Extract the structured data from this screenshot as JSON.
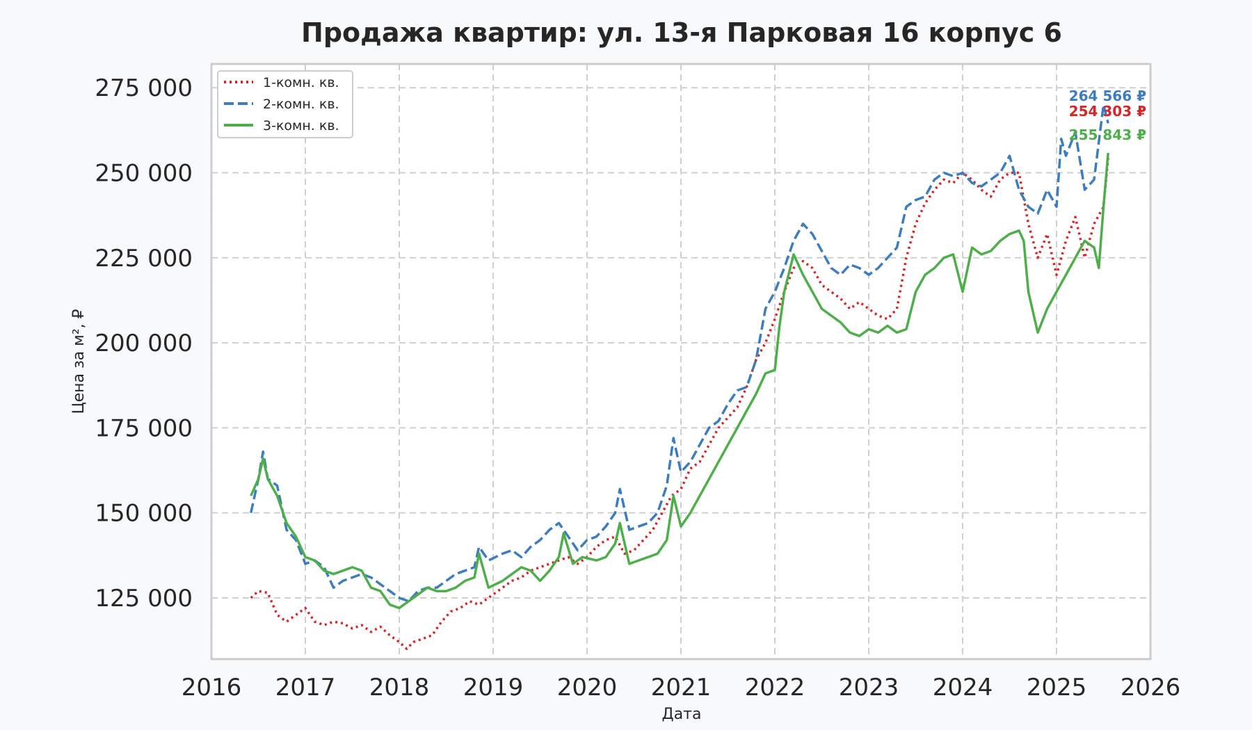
{
  "chart_data": {
    "type": "line",
    "title": "Продажа квартир: ул. 13-я Парковая 16 корпус 6",
    "xlabel": "Дата",
    "ylabel": "Цена за м², ₽",
    "xlim": [
      2016,
      2026
    ],
    "ylim": [
      107000,
      282000
    ],
    "xticks": [
      "2016",
      "2017",
      "2018",
      "2019",
      "2020",
      "2021",
      "2022",
      "2023",
      "2024",
      "2025",
      "2026"
    ],
    "yticks": [
      "125 000",
      "150 000",
      "175 000",
      "200 000",
      "225 000",
      "250 000",
      "275 000"
    ],
    "grid": true,
    "legend_position": "top-left",
    "series": [
      {
        "name": "1-комн. кв.",
        "color": "#d62728",
        "style": "dotted",
        "end_label": "254 303 ₽",
        "x": [
          2016.42,
          2016.5,
          2016.6,
          2016.7,
          2016.8,
          2016.9,
          2017.0,
          2017.1,
          2017.2,
          2017.3,
          2017.4,
          2017.5,
          2017.6,
          2017.7,
          2017.8,
          2017.9,
          2018.0,
          2018.08,
          2018.15,
          2018.25,
          2018.35,
          2018.45,
          2018.55,
          2018.65,
          2018.75,
          2018.85,
          2019.0,
          2019.1,
          2019.2,
          2019.3,
          2019.4,
          2019.5,
          2019.6,
          2019.7,
          2019.8,
          2019.9,
          2020.0,
          2020.1,
          2020.2,
          2020.3,
          2020.4,
          2020.5,
          2020.6,
          2020.7,
          2020.8,
          2020.9,
          2021.0,
          2021.1,
          2021.2,
          2021.3,
          2021.4,
          2021.5,
          2021.6,
          2021.7,
          2021.8,
          2021.9,
          2022.0,
          2022.1,
          2022.2,
          2022.3,
          2022.4,
          2022.5,
          2022.6,
          2022.7,
          2022.8,
          2022.9,
          2023.0,
          2023.1,
          2023.2,
          2023.3,
          2023.4,
          2023.5,
          2023.6,
          2023.7,
          2023.8,
          2023.9,
          2024.0,
          2024.1,
          2024.2,
          2024.3,
          2024.4,
          2024.5,
          2024.6,
          2024.7,
          2024.8,
          2024.9,
          2025.0,
          2025.1,
          2025.2,
          2025.3,
          2025.4,
          2025.5,
          2025.55
        ],
        "y": [
          125000,
          127000,
          126500,
          120000,
          118000,
          120000,
          122000,
          118000,
          117000,
          118000,
          117500,
          116000,
          117000,
          115000,
          116500,
          114000,
          112000,
          110000,
          112000,
          113000,
          114000,
          118000,
          121000,
          122000,
          124000,
          123000,
          126000,
          128000,
          130000,
          131000,
          133000,
          134000,
          135000,
          136000,
          137000,
          135000,
          137000,
          140000,
          142000,
          143000,
          138000,
          139000,
          142000,
          145000,
          150000,
          155000,
          157000,
          163000,
          165000,
          170000,
          175000,
          178000,
          181000,
          187000,
          195000,
          200000,
          207000,
          215000,
          222000,
          224000,
          222000,
          217000,
          215000,
          213000,
          210000,
          212000,
          210000,
          208000,
          207000,
          210000,
          225000,
          235000,
          241000,
          245000,
          248000,
          247000,
          250000,
          248000,
          245000,
          243000,
          248000,
          250000,
          250000,
          235000,
          225000,
          232000,
          220000,
          230000,
          237000,
          225000,
          235000,
          240000,
          254303
        ]
      },
      {
        "name": "2-комн. кв.",
        "color": "#3b7dbf",
        "style": "dashed",
        "end_label": "264 566 ₽",
        "x": [
          2016.42,
          2016.5,
          2016.55,
          2016.6,
          2016.7,
          2016.8,
          2016.9,
          2017.0,
          2017.1,
          2017.2,
          2017.3,
          2017.4,
          2017.5,
          2017.6,
          2017.7,
          2017.8,
          2017.9,
          2018.0,
          2018.1,
          2018.2,
          2018.3,
          2018.4,
          2018.5,
          2018.6,
          2018.7,
          2018.8,
          2018.85,
          2018.95,
          2019.1,
          2019.2,
          2019.3,
          2019.4,
          2019.5,
          2019.6,
          2019.7,
          2019.8,
          2019.9,
          2020.0,
          2020.1,
          2020.2,
          2020.3,
          2020.35,
          2020.45,
          2020.55,
          2020.65,
          2020.75,
          2020.85,
          2020.92,
          2021.0,
          2021.1,
          2021.2,
          2021.3,
          2021.4,
          2021.5,
          2021.6,
          2021.7,
          2021.8,
          2021.9,
          2022.0,
          2022.1,
          2022.2,
          2022.3,
          2022.4,
          2022.5,
          2022.6,
          2022.7,
          2022.8,
          2022.9,
          2023.0,
          2023.1,
          2023.2,
          2023.3,
          2023.4,
          2023.5,
          2023.6,
          2023.7,
          2023.8,
          2023.9,
          2024.0,
          2024.1,
          2024.2,
          2024.3,
          2024.4,
          2024.5,
          2024.6,
          2024.7,
          2024.8,
          2024.9,
          2025.0,
          2025.05,
          2025.1,
          2025.2,
          2025.3,
          2025.4,
          2025.5,
          2025.55
        ],
        "y": [
          150000,
          160000,
          168000,
          160000,
          158000,
          145000,
          142000,
          135000,
          136000,
          134000,
          128000,
          130000,
          131000,
          132000,
          131000,
          129000,
          127000,
          125000,
          124000,
          127000,
          128000,
          128000,
          130000,
          132000,
          133000,
          134000,
          140000,
          136000,
          138000,
          139000,
          137000,
          140000,
          142000,
          145000,
          147000,
          143000,
          139000,
          142000,
          143000,
          146000,
          150000,
          157000,
          145000,
          146000,
          147000,
          150000,
          158000,
          172000,
          162000,
          165000,
          170000,
          175000,
          177000,
          182000,
          186000,
          187000,
          195000,
          210000,
          215000,
          222000,
          230000,
          235000,
          232000,
          227000,
          222000,
          220000,
          223000,
          222000,
          220000,
          222000,
          225000,
          228000,
          240000,
          242000,
          243000,
          248000,
          250000,
          249000,
          250000,
          247000,
          246000,
          248000,
          250000,
          255000,
          245000,
          240000,
          238000,
          245000,
          240000,
          260000,
          255000,
          262000,
          245000,
          248000,
          270000,
          264566
        ]
      },
      {
        "name": "3-комн. кв.",
        "color": "#4daf4a",
        "style": "solid",
        "end_label": "255 843 ₽",
        "x": [
          2016.42,
          2016.5,
          2016.55,
          2016.6,
          2016.7,
          2016.8,
          2016.9,
          2017.0,
          2017.1,
          2017.2,
          2017.3,
          2017.4,
          2017.5,
          2017.6,
          2017.7,
          2017.8,
          2017.9,
          2018.0,
          2018.1,
          2018.2,
          2018.3,
          2018.4,
          2018.5,
          2018.6,
          2018.7,
          2018.8,
          2018.85,
          2018.95,
          2019.1,
          2019.2,
          2019.3,
          2019.4,
          2019.5,
          2019.6,
          2019.7,
          2019.75,
          2019.85,
          2019.95,
          2020.1,
          2020.2,
          2020.3,
          2020.35,
          2020.45,
          2020.55,
          2020.65,
          2020.75,
          2020.85,
          2020.92,
          2021.0,
          2021.1,
          2021.2,
          2021.3,
          2021.4,
          2021.5,
          2021.6,
          2021.7,
          2021.8,
          2021.9,
          2022.0,
          2022.05,
          2022.1,
          2022.2,
          2022.3,
          2022.4,
          2022.5,
          2022.6,
          2022.7,
          2022.8,
          2022.9,
          2023.0,
          2023.1,
          2023.2,
          2023.3,
          2023.4,
          2023.5,
          2023.6,
          2023.7,
          2023.8,
          2023.9,
          2024.0,
          2024.1,
          2024.2,
          2024.3,
          2024.4,
          2024.5,
          2024.6,
          2024.65,
          2024.7,
          2024.8,
          2024.9,
          2025.0,
          2025.1,
          2025.2,
          2025.3,
          2025.4,
          2025.45,
          2025.5,
          2025.55
        ],
        "y": [
          155000,
          160000,
          166000,
          160000,
          155000,
          147000,
          143000,
          137000,
          136000,
          133000,
          132000,
          133000,
          134000,
          133000,
          128000,
          127000,
          123000,
          122000,
          124000,
          126000,
          128000,
          127000,
          127000,
          128000,
          130000,
          131000,
          138000,
          128000,
          130000,
          132000,
          134000,
          133000,
          130000,
          133000,
          137000,
          144000,
          135000,
          137000,
          136000,
          137000,
          141000,
          147000,
          135000,
          136000,
          137000,
          138000,
          142000,
          155000,
          146000,
          150000,
          155000,
          160000,
          165000,
          170000,
          175000,
          180000,
          185000,
          191000,
          192000,
          205000,
          215000,
          226000,
          220000,
          215000,
          210000,
          208000,
          206000,
          203000,
          202000,
          204000,
          203000,
          205000,
          203000,
          204000,
          215000,
          220000,
          222000,
          225000,
          226000,
          215000,
          228000,
          226000,
          227000,
          230000,
          232000,
          233000,
          230000,
          215000,
          203000,
          210000,
          215000,
          220000,
          225000,
          230000,
          228000,
          222000,
          240000,
          255843
        ]
      }
    ]
  }
}
